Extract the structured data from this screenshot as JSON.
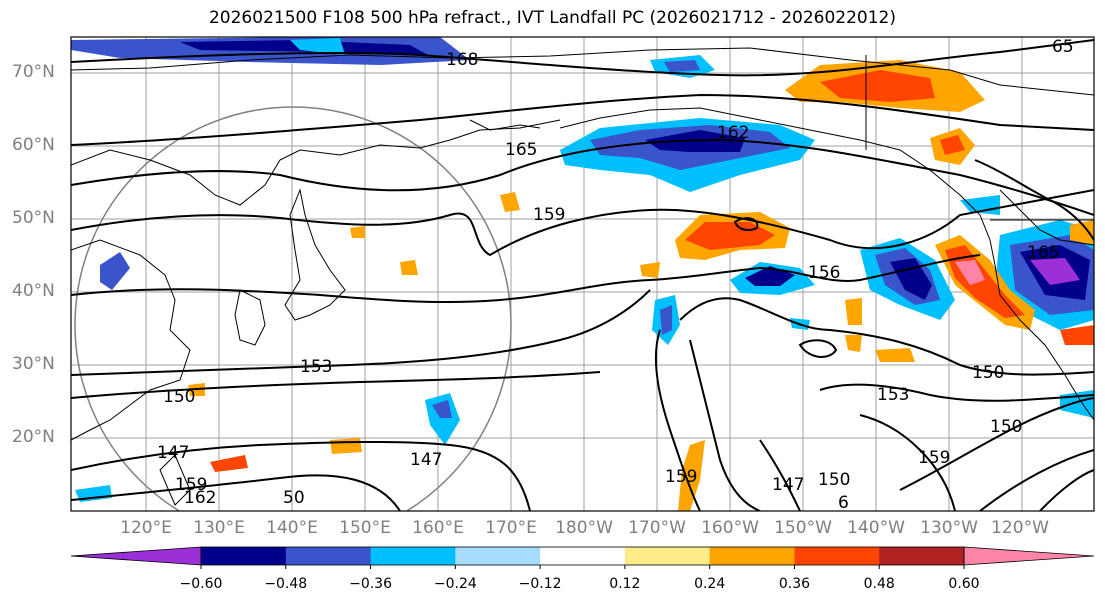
{
  "title": "2026021500 F108 500 hPa refract., IVT Landfall PC (2026021712 - 2026022012)",
  "lat_labels": [
    "70°N",
    "60°N",
    "50°N",
    "40°N",
    "30°N",
    "20°N"
  ],
  "lon_labels": [
    "120°E",
    "130°E",
    "140°E",
    "150°E",
    "160°E",
    "170°E",
    "180°W",
    "170°W",
    "160°W",
    "150°W",
    "140°W",
    "130°W",
    "120°W"
  ],
  "contour_labels": [
    "168",
    "165",
    "162",
    "159",
    "156",
    "153",
    "150",
    "147",
    "159",
    "162",
    "150",
    "153",
    "150",
    "147",
    "159",
    "150",
    "147",
    "159",
    "165",
    "65",
    "6",
    "50"
  ],
  "colorbar": {
    "ticks": [
      "−0.60",
      "−0.48",
      "−0.36",
      "−0.24",
      "−0.12",
      "0.12",
      "0.24",
      "0.36",
      "0.48",
      "0.60"
    ],
    "colors": [
      "#9b30d9",
      "#00008b",
      "#3a55cc",
      "#00bfff",
      "#a6dcff",
      "#ffffff",
      "#ffeb8a",
      "#ffa500",
      "#ff4500",
      "#b22222",
      "#ff85a8"
    ]
  },
  "map_layers": {
    "contour_color": "#000000",
    "grid_color": "#a0a0a0",
    "range_ring_color": "#808080"
  }
}
